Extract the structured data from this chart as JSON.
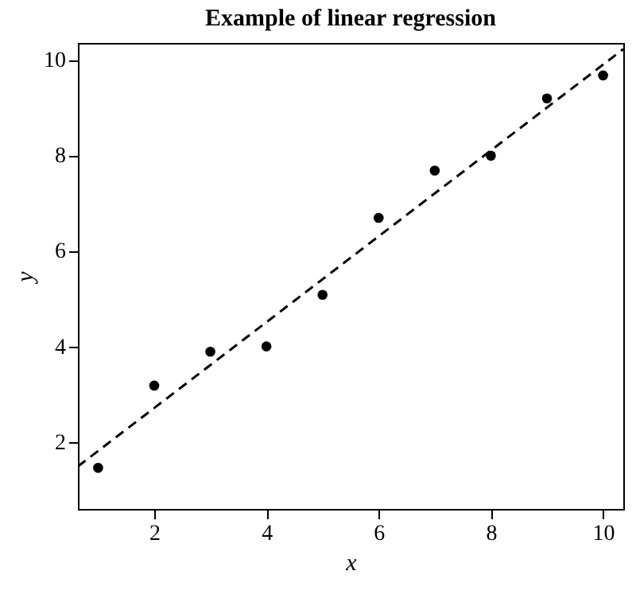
{
  "chart_data": {
    "type": "scatter",
    "title": "Example of linear regression",
    "xlabel": "x",
    "ylabel": "y",
    "x": [
      1,
      2,
      3,
      4,
      5,
      6,
      7,
      8,
      9,
      10
    ],
    "series": [
      {
        "color": "#000000",
        "marker": "circle",
        "values": [
          1.46,
          3.18,
          3.89,
          4.0,
          5.08,
          6.69,
          7.68,
          7.99,
          9.19,
          9.67
        ]
      },
      {
        "type": "line",
        "color": "#000000",
        "line_style": "dashed",
        "x": [
          0.64,
          10.36
        ],
        "values": [
          1.49,
          10.22
        ]
      }
    ],
    "xlim": [
      0.64,
      10.36
    ],
    "ylim": [
      0.6,
      10.35
    ],
    "xticks": [
      2,
      4,
      6,
      8,
      10
    ],
    "yticks": [
      2,
      4,
      6,
      8,
      10
    ],
    "grid": false
  }
}
